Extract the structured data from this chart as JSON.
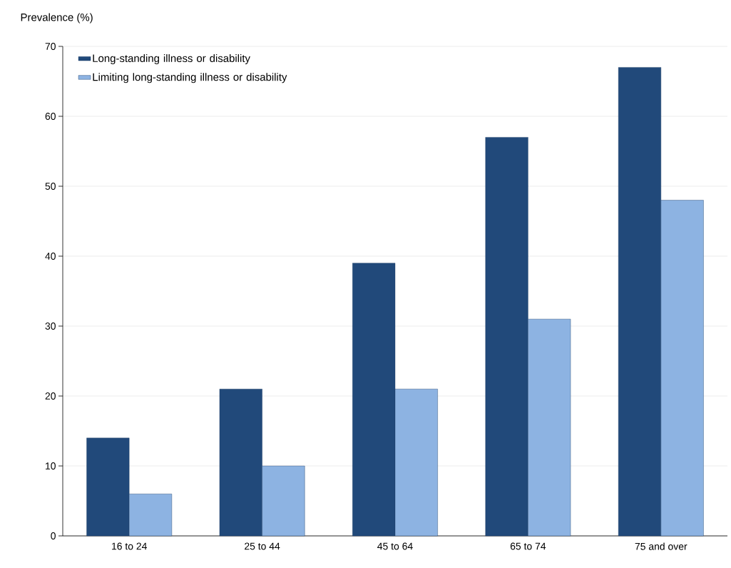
{
  "chart_data": {
    "type": "bar",
    "ylabel": "Prevalence (%)",
    "categories": [
      "16 to 24",
      "25 to 44",
      "45 to 64",
      "65 to 74",
      "75 and over"
    ],
    "series": [
      {
        "name": "Long-standing illness or disability",
        "color": "#21497a",
        "values": [
          14,
          21,
          39,
          57,
          67
        ]
      },
      {
        "name": "Limiting long-standing illness or disability",
        "color": "#8db3e2",
        "values": [
          6,
          10,
          21,
          31,
          48
        ]
      }
    ],
    "ylim": [
      0,
      70
    ],
    "yticks": [
      0,
      10,
      20,
      30,
      40,
      50,
      60,
      70
    ],
    "grid": "y",
    "legend": "top left"
  }
}
